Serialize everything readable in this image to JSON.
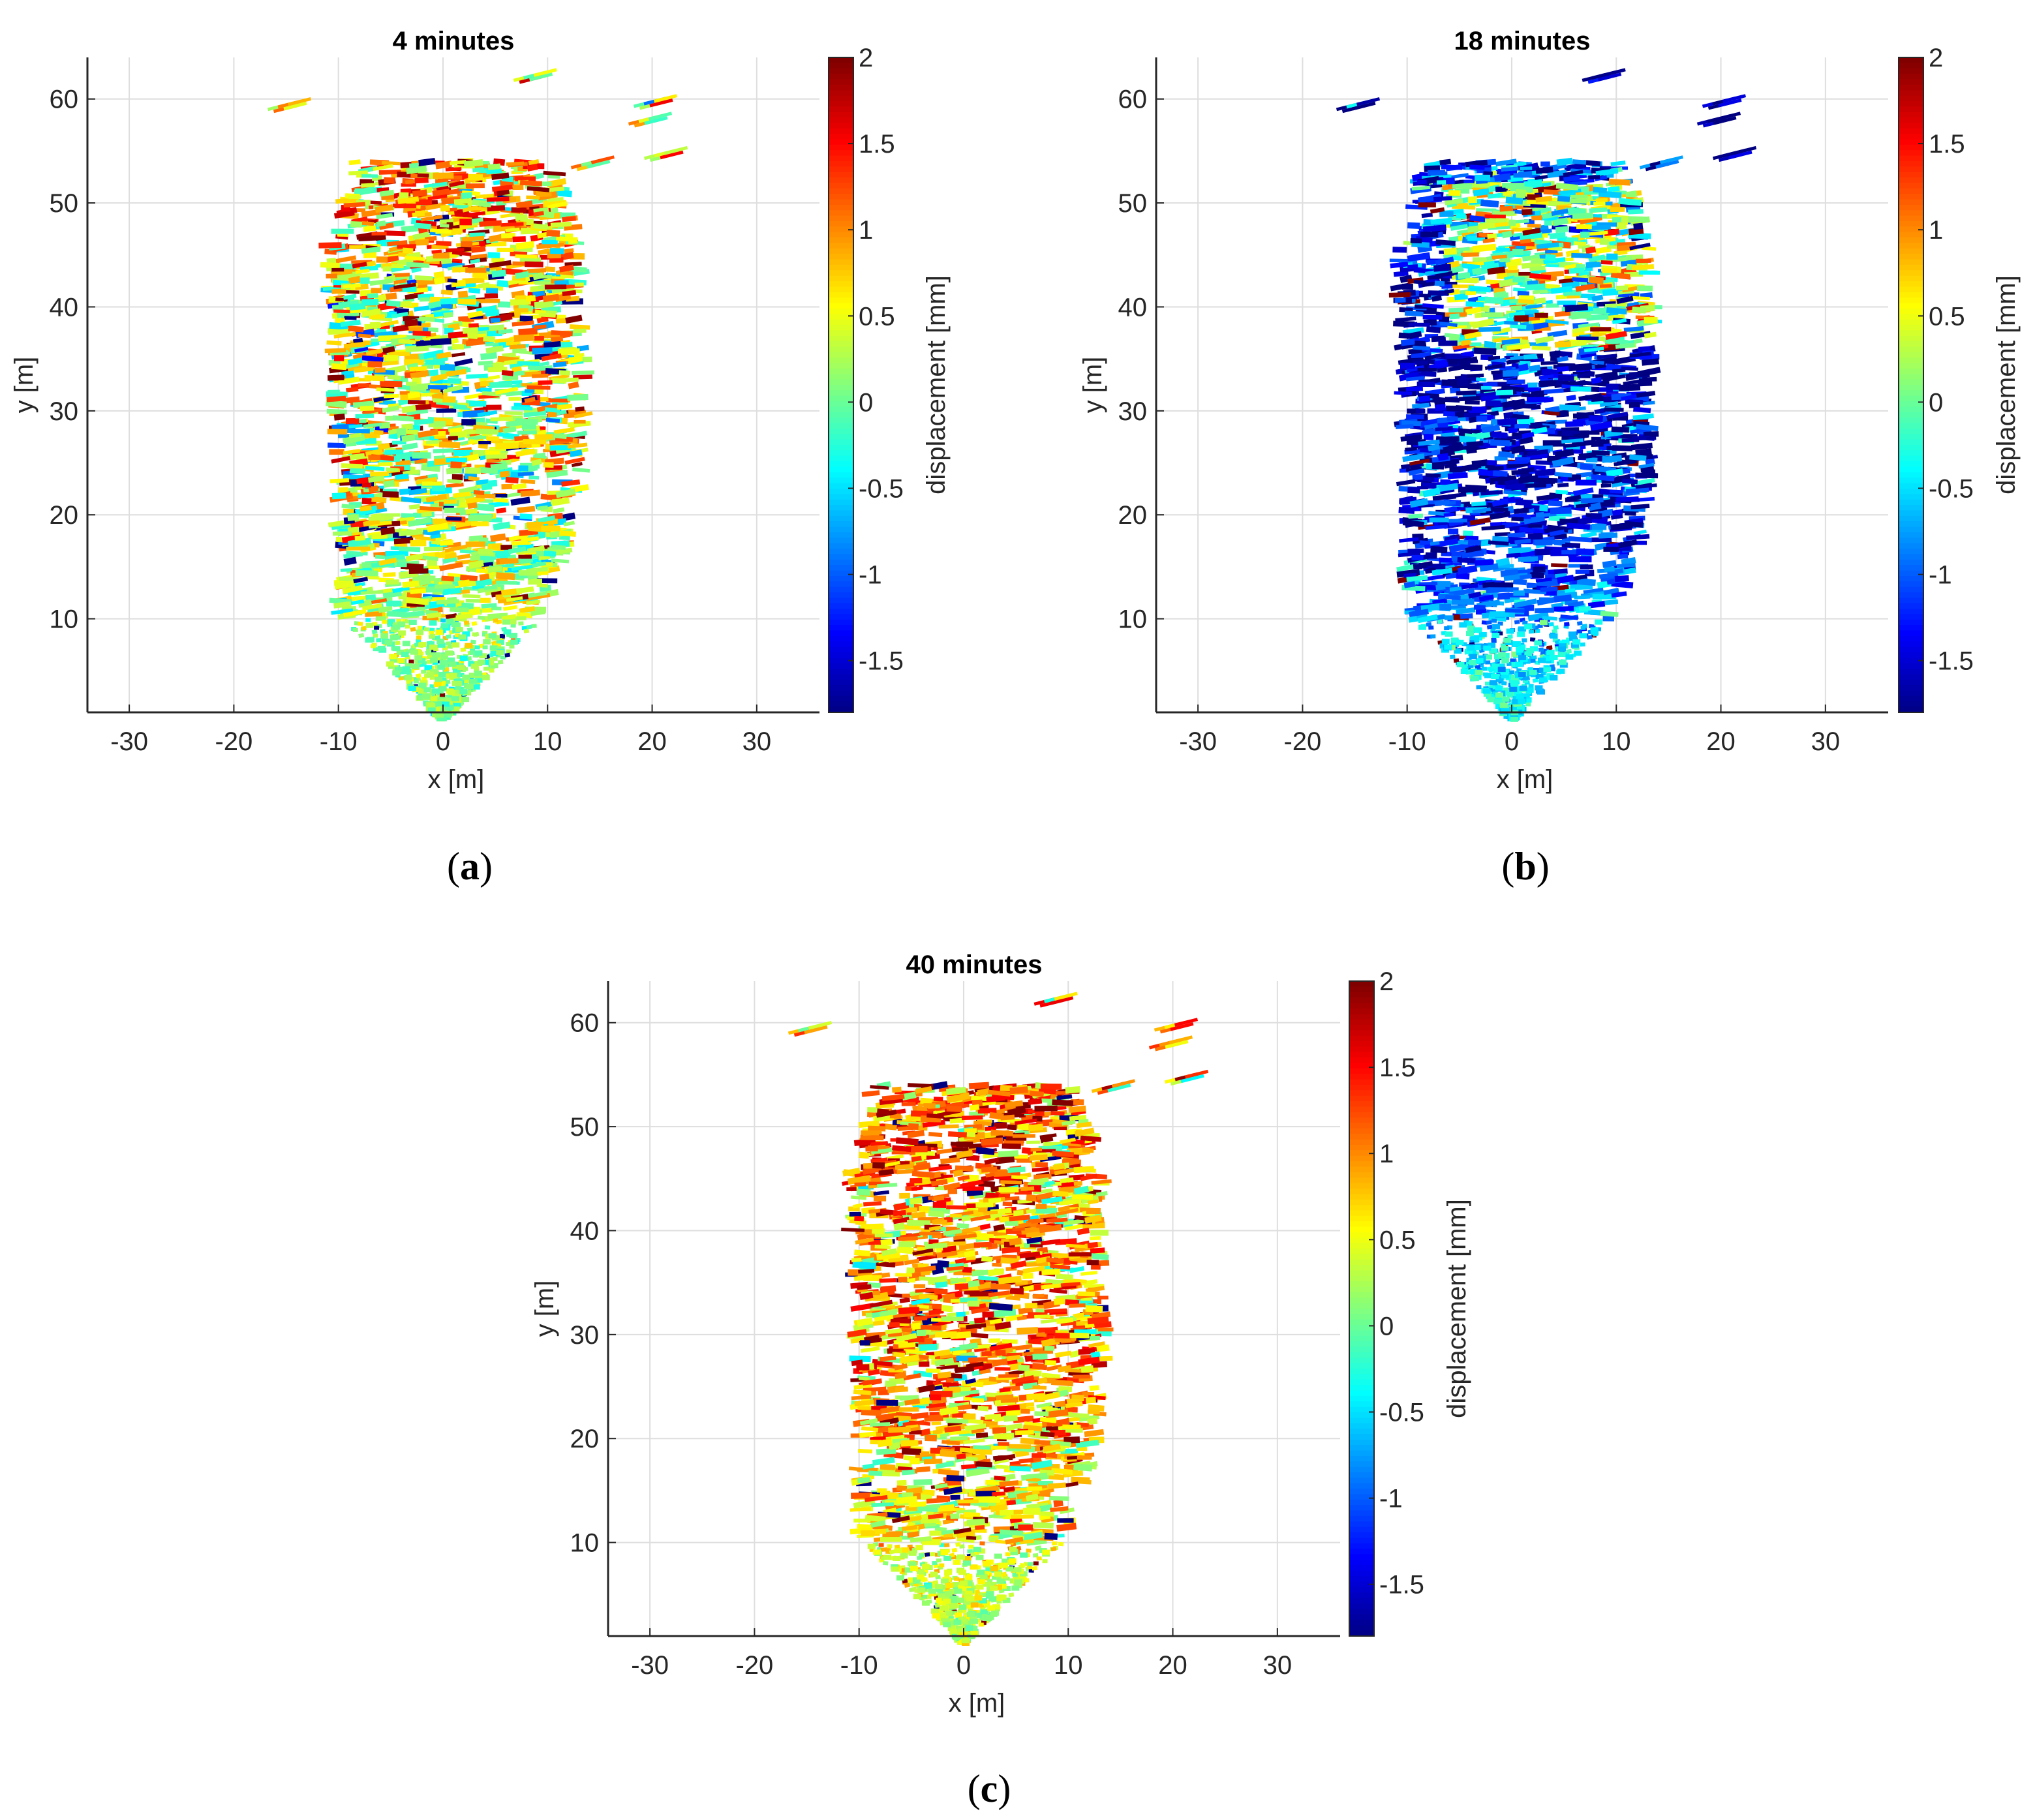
{
  "figure": {
    "captions": [
      "a",
      "b",
      "c"
    ]
  },
  "chart_data": [
    {
      "type": "scatter",
      "panel": "a",
      "title": "4 minutes",
      "xlabel": "x [m]",
      "ylabel": "y [m]",
      "xlim": [
        -34,
        36
      ],
      "ylim": [
        1,
        64
      ],
      "xticks": [
        -30,
        -20,
        -10,
        0,
        10,
        20,
        30
      ],
      "yticks": [
        10,
        20,
        30,
        40,
        50,
        60
      ],
      "grid": true,
      "colorbar": {
        "label": "displacement [mm]",
        "min": -1.8,
        "max": 2,
        "ticks": [
          2,
          1.5,
          1,
          0.5,
          0,
          -0.5,
          -1,
          -1.5
        ],
        "colormap": "jet"
      },
      "field": {
        "shape": "fan from apex (0,0) widening to x≈-10..14 at y≈54",
        "dominant_value": 0.4,
        "spread": 0.9,
        "near_field_value": 0.1,
        "upper_top_value": 0.8
      }
    },
    {
      "type": "scatter",
      "panel": "b",
      "title": "18 minutes",
      "xlabel": "x [m]",
      "ylabel": "y [m]",
      "xlim": [
        -34,
        36
      ],
      "ylim": [
        1,
        64
      ],
      "xticks": [
        -30,
        -20,
        -10,
        0,
        10,
        20,
        30
      ],
      "yticks": [
        10,
        20,
        30,
        40,
        50,
        60
      ],
      "grid": true,
      "colorbar": {
        "label": "displacement [mm]",
        "min": -1.8,
        "max": 2,
        "ticks": [
          2,
          1.5,
          1,
          0.5,
          0,
          -0.5,
          -1,
          -1.5
        ],
        "colormap": "jet"
      },
      "field": {
        "shape": "fan from apex (0,0) widening to x≈-10..14 at y≈54",
        "dominant_value": -1.5,
        "spread": 0.8,
        "near_field_value": -0.4,
        "upper_top_value": -1.2,
        "upper_mid_value": 0.2
      }
    },
    {
      "type": "scatter",
      "panel": "c",
      "title": "40 minutes",
      "xlabel": "x [m]",
      "ylabel": "y [m]",
      "xlim": [
        -34,
        36
      ],
      "ylim": [
        1,
        64
      ],
      "xticks": [
        -30,
        -20,
        -10,
        0,
        10,
        20,
        30
      ],
      "yticks": [
        10,
        20,
        30,
        40,
        50,
        60
      ],
      "grid": true,
      "colorbar": {
        "label": "displacement [mm]",
        "min": -1.8,
        "max": 2,
        "ticks": [
          2,
          1.5,
          1,
          0.5,
          0,
          -0.5,
          -1,
          -1.5
        ],
        "colormap": "jet"
      },
      "field": {
        "shape": "fan from apex (0,0) widening to x≈-10..14 at y≈54",
        "dominant_value": 0.9,
        "spread": 0.8,
        "near_field_value": 0.3,
        "upper_top_value": 1.1
      }
    }
  ]
}
